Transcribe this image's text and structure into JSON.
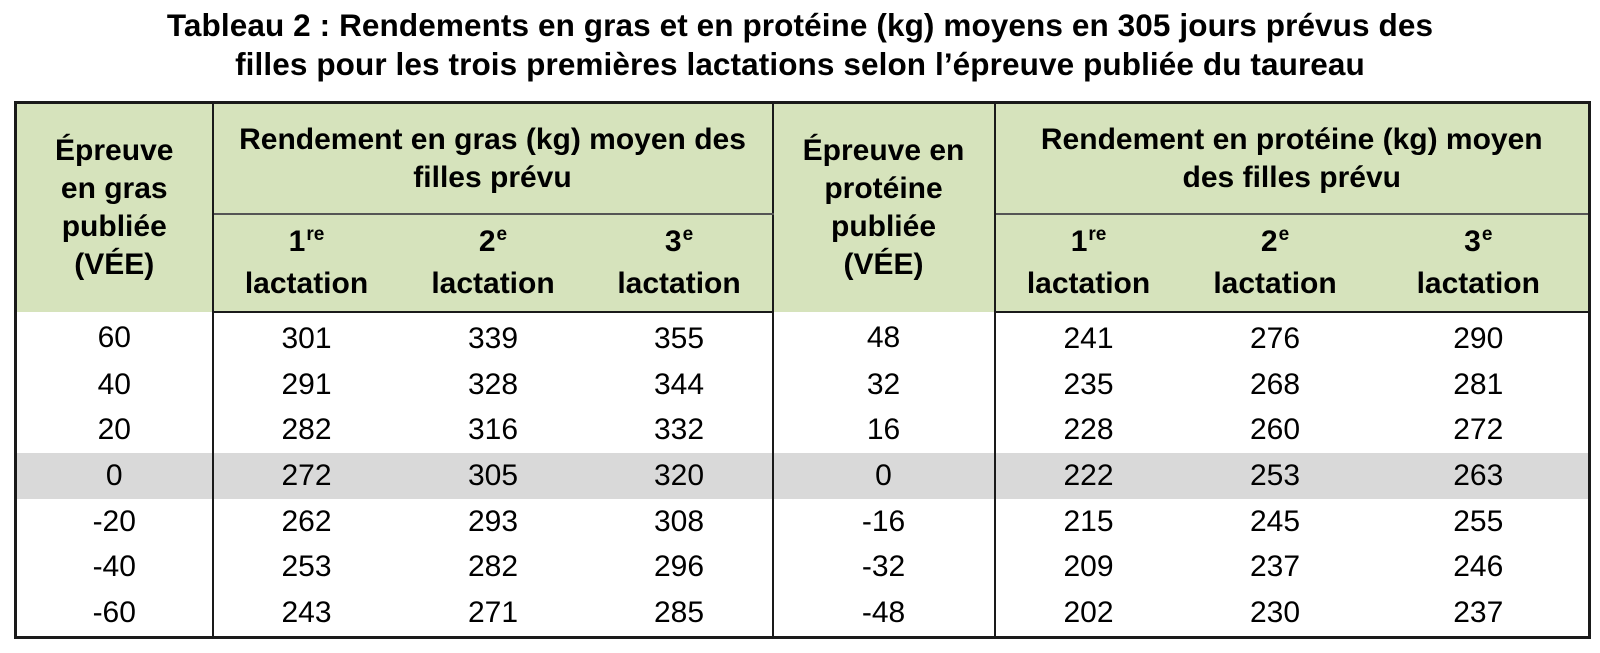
{
  "title": {
    "line1": "Tableau 2 : Rendements en gras et en protéine (kg) moyens en 305 jours prévus des",
    "line2": "filles pour les trois premières lactations selon l’épreuve publiée du taureau"
  },
  "headers": {
    "fat_proof": "Épreuve en gras publiée (VÉE)",
    "fat_group": "Rendement en gras (kg) moyen des filles prévu",
    "protein_proof": "Épreuve en protéine publiée (VÉE)",
    "protein_group": "Rendement en protéine (kg) moyen des filles prévu",
    "lactations": [
      {
        "num": "1",
        "sup": "re",
        "word": "lactation"
      },
      {
        "num": "2",
        "sup": "e",
        "word": "lactation"
      },
      {
        "num": "3",
        "sup": "e",
        "word": "lactation"
      }
    ]
  },
  "rows": [
    {
      "cells": [
        "60",
        "301",
        "339",
        "355",
        "48",
        "241",
        "276",
        "290"
      ],
      "highlight": false
    },
    {
      "cells": [
        "40",
        "291",
        "328",
        "344",
        "32",
        "235",
        "268",
        "281"
      ],
      "highlight": false
    },
    {
      "cells": [
        "20",
        "282",
        "316",
        "332",
        "16",
        "228",
        "260",
        "272"
      ],
      "highlight": false
    },
    {
      "cells": [
        "0",
        "272",
        "305",
        "320",
        "0",
        "222",
        "253",
        "263"
      ],
      "highlight": true
    },
    {
      "cells": [
        "-20",
        "262",
        "293",
        "308",
        "-16",
        "215",
        "245",
        "255"
      ],
      "highlight": false
    },
    {
      "cells": [
        "-40",
        "253",
        "282",
        "296",
        "-32",
        "209",
        "237",
        "246"
      ],
      "highlight": false
    },
    {
      "cells": [
        "-60",
        "243",
        "271",
        "285",
        "-48",
        "202",
        "230",
        "237"
      ],
      "highlight": false
    }
  ],
  "colors": {
    "header_bg": "#d6e3bc",
    "highlight_row": "#d9d9d9"
  }
}
